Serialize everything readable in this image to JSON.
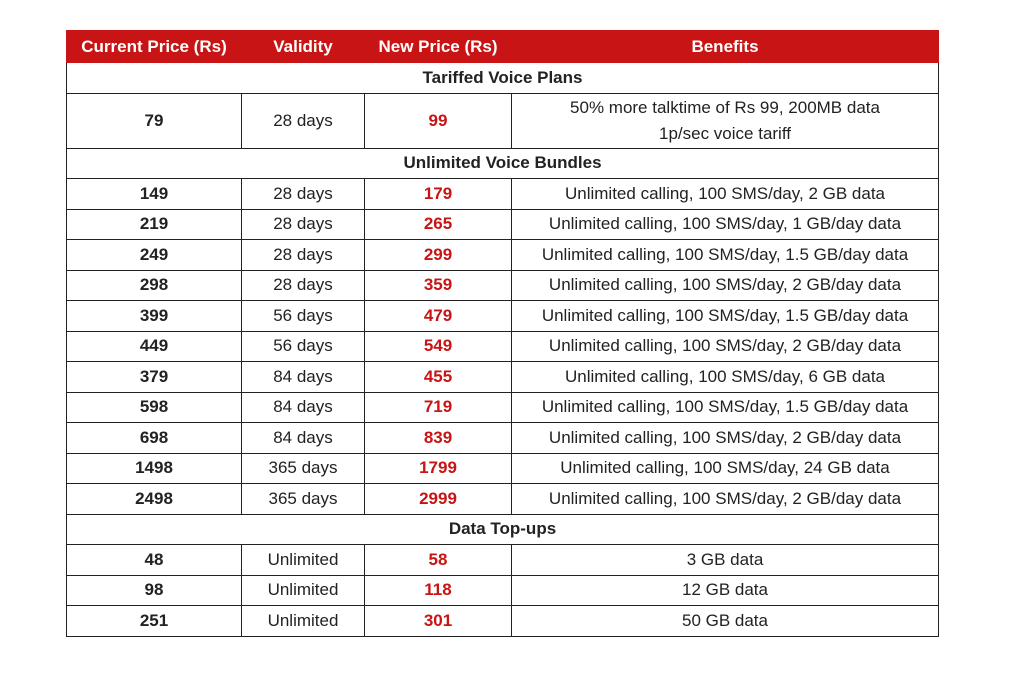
{
  "headers": [
    "Current Price (Rs)",
    "Validity",
    "New Price (Rs)",
    "Benefits"
  ],
  "sections": [
    {
      "title": "Tariffed Voice Plans",
      "rows": [
        {
          "current": "79",
          "validity": "28 days",
          "new": "99",
          "benefits": [
            "50% more talktime of Rs 99, 200MB data",
            "1p/sec voice tariff"
          ]
        }
      ]
    },
    {
      "title": "Unlimited Voice Bundles",
      "rows": [
        {
          "current": "149",
          "validity": "28 days",
          "new": "179",
          "benefits": [
            "Unlimited calling, 100 SMS/day, 2 GB data"
          ]
        },
        {
          "current": "219",
          "validity": "28 days",
          "new": "265",
          "benefits": [
            "Unlimited calling, 100 SMS/day, 1 GB/day data"
          ]
        },
        {
          "current": "249",
          "validity": "28 days",
          "new": "299",
          "benefits": [
            "Unlimited calling, 100 SMS/day, 1.5 GB/day data"
          ]
        },
        {
          "current": "298",
          "validity": "28 days",
          "new": "359",
          "benefits": [
            "Unlimited calling, 100 SMS/day, 2 GB/day data"
          ]
        },
        {
          "current": "399",
          "validity": "56 days",
          "new": "479",
          "benefits": [
            "Unlimited calling, 100 SMS/day, 1.5 GB/day data"
          ]
        },
        {
          "current": "449",
          "validity": "56 days",
          "new": "549",
          "benefits": [
            "Unlimited calling, 100 SMS/day, 2 GB/day data"
          ]
        },
        {
          "current": "379",
          "validity": "84 days",
          "new": "455",
          "benefits": [
            "Unlimited calling, 100 SMS/day, 6 GB data"
          ]
        },
        {
          "current": "598",
          "validity": "84 days",
          "new": "719",
          "benefits": [
            "Unlimited calling, 100 SMS/day, 1.5 GB/day data"
          ]
        },
        {
          "current": "698",
          "validity": "84 days",
          "new": "839",
          "benefits": [
            "Unlimited calling, 100 SMS/day, 2 GB/day data"
          ]
        },
        {
          "current": "1498",
          "validity": "365 days",
          "new": "1799",
          "benefits": [
            "Unlimited calling, 100 SMS/day, 24 GB data"
          ]
        },
        {
          "current": "2498",
          "validity": "365 days",
          "new": "2999",
          "benefits": [
            "Unlimited calling, 100 SMS/day, 2 GB/day data"
          ]
        }
      ]
    },
    {
      "title": "Data Top-ups",
      "rows": [
        {
          "current": "48",
          "validity": "Unlimited",
          "new": "58",
          "benefits": [
            "3 GB data"
          ]
        },
        {
          "current": "98",
          "validity": "Unlimited",
          "new": "118",
          "benefits": [
            "12 GB data"
          ]
        },
        {
          "current": "251",
          "validity": "Unlimited",
          "new": "301",
          "benefits": [
            "50 GB data"
          ]
        }
      ]
    }
  ],
  "colors": {
    "header_bg": "#c81414",
    "new_price": "#c81414"
  }
}
